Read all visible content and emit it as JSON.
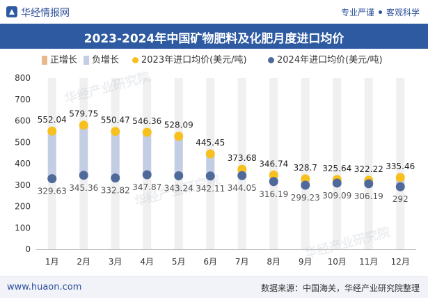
{
  "header": {
    "brand": "华经情报网",
    "slogan_left": "专业严谨",
    "slogan_right": "客观科学",
    "title": "2023-2024年中国矿物肥料及化肥月度进口均价"
  },
  "footer": {
    "url": "www.huaon.com",
    "source": "数据来源：中国海关，华经产业研究院整理"
  },
  "watermark": {
    "text": "华经产业研究院",
    "domain": "www.huaon.com"
  },
  "colors": {
    "pos_bar": "#c3cde3",
    "neg_bar": "#c3cde3",
    "series_2023": "#f8c01e",
    "series_2024": "#4f6a9a",
    "title_bg": "#2d5aa0",
    "grid_band": "#f0f0f0"
  },
  "chart_data": {
    "type": "line",
    "title": "2023-2024年中国矿物肥料及化肥月度进口均价",
    "categories": [
      "1月",
      "2月",
      "3月",
      "4月",
      "5月",
      "6月",
      "7月",
      "8月",
      "9月",
      "10月",
      "11月",
      "12月"
    ],
    "legend": [
      {
        "name": "正增长",
        "kind": "bar"
      },
      {
        "name": "负增长",
        "kind": "bar"
      },
      {
        "name": "2023年进口均价(美元/吨)",
        "kind": "dot"
      },
      {
        "name": "2024年进口均价(美元/吨)",
        "kind": "dot"
      }
    ],
    "series": [
      {
        "name": "2023年进口均价(美元/吨)",
        "values": [
          552.04,
          579.75,
          550.47,
          546.36,
          528.09,
          445.45,
          373.68,
          346.74,
          328.7,
          325.64,
          322.22,
          335.46
        ]
      },
      {
        "name": "2024年进口均价(美元/吨)",
        "values": [
          329.63,
          345.36,
          332.82,
          347.87,
          343.24,
          342.11,
          344.05,
          316.19,
          299.23,
          309.09,
          306.19,
          292
        ]
      }
    ],
    "labels_2023": [
      "552.04",
      "579.75",
      "550.47",
      "546.36",
      "528.09",
      "445.45",
      "373.68",
      "346.74",
      "328.7",
      "325.64",
      "322.22",
      "335.46"
    ],
    "labels_2024": [
      "329.63",
      "345.36",
      "332.82",
      "347.87",
      "343.24",
      "342.11",
      "344.05",
      "316.19",
      "299.23",
      "309.09",
      "306.19",
      "292"
    ],
    "y_ticks": [
      "0",
      "100",
      "200",
      "300",
      "400",
      "500",
      "600",
      "700",
      "800"
    ],
    "ylim": [
      0,
      800
    ],
    "xlabel": "",
    "ylabel": "",
    "legend_position": "top"
  }
}
